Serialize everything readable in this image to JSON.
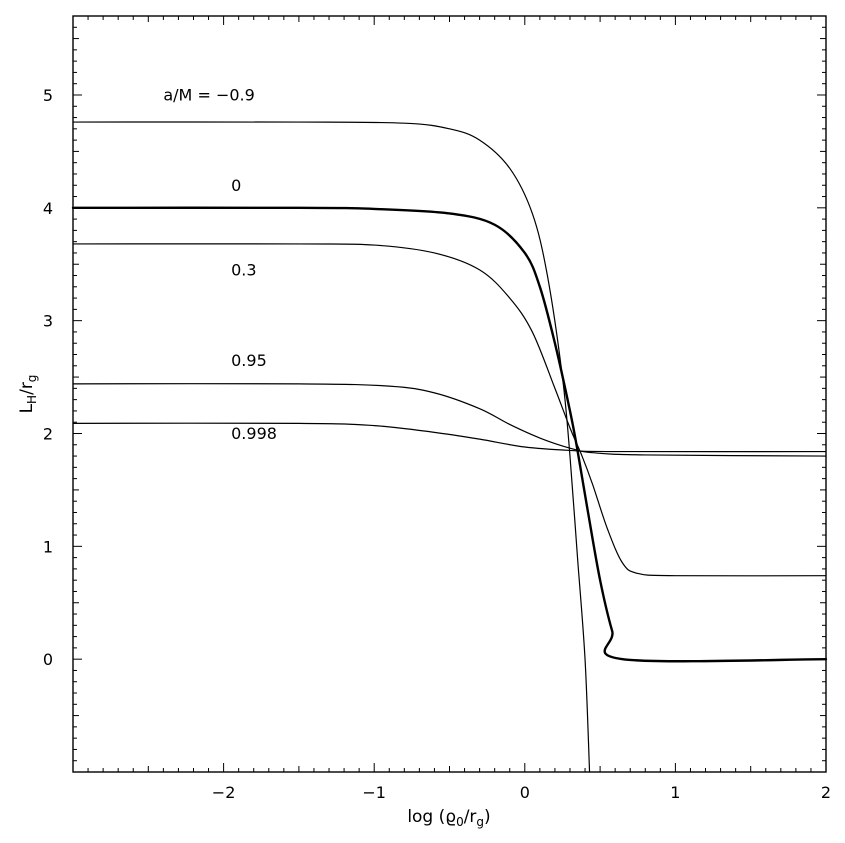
{
  "chart_data": {
    "type": "line",
    "title": "",
    "xlabel": "log (ϱ",
    "xlabel_sub": "0",
    "xlabel_mid": "/r",
    "xlabel_sub2": "g",
    "xlabel_end": ")",
    "ylabel_main": "L",
    "ylabel_sub": "H",
    "ylabel_mid": "/r",
    "ylabel_sub2": "g",
    "xlim": [
      -3,
      2
    ],
    "ylim": [
      -1,
      5.7
    ],
    "x_ticks": [
      {
        "value": -2,
        "label": "−2"
      },
      {
        "value": -1,
        "label": "−1"
      },
      {
        "value": 0,
        "label": "0"
      },
      {
        "value": 1,
        "label": "1"
      },
      {
        "value": 2,
        "label": "2"
      }
    ],
    "y_ticks": [
      {
        "value": 0,
        "label": "0"
      },
      {
        "value": 1,
        "label": "1"
      },
      {
        "value": 2,
        "label": "2"
      },
      {
        "value": 3,
        "label": "3"
      },
      {
        "value": 4,
        "label": "4"
      },
      {
        "value": 5,
        "label": "5"
      }
    ],
    "grid": false,
    "legend": "none",
    "series": [
      {
        "name": "a/M = −0.9",
        "label_x": -2.4,
        "label_y": 4.95,
        "bold": false,
        "points": [
          [
            -3,
            4.76
          ],
          [
            -1.5,
            4.76
          ],
          [
            -0.8,
            4.75
          ],
          [
            -0.5,
            4.7
          ],
          [
            -0.3,
            4.6
          ],
          [
            -0.1,
            4.35
          ],
          [
            0.05,
            3.95
          ],
          [
            0.15,
            3.4
          ],
          [
            0.25,
            2.5
          ],
          [
            0.3,
            1.8
          ],
          [
            0.35,
            0.9
          ],
          [
            0.4,
            0.0
          ],
          [
            0.43,
            -1.0
          ]
        ]
      },
      {
        "name": "0",
        "label_x": -1.95,
        "label_y": 4.15,
        "bold": true,
        "points": [
          [
            -3,
            4.0
          ],
          [
            -1.5,
            4.0
          ],
          [
            -1.0,
            3.99
          ],
          [
            -0.5,
            3.95
          ],
          [
            -0.2,
            3.85
          ],
          [
            0.0,
            3.6
          ],
          [
            0.1,
            3.3
          ],
          [
            0.2,
            2.8
          ],
          [
            0.3,
            2.2
          ],
          [
            0.35,
            1.85
          ],
          [
            0.42,
            1.3
          ],
          [
            0.5,
            0.7
          ],
          [
            0.58,
            0.25
          ],
          [
            0.65,
            0.0
          ],
          [
            2,
            0.0
          ]
        ]
      },
      {
        "name": "0.3",
        "label_x": -1.95,
        "label_y": 3.4,
        "bold": false,
        "points": [
          [
            -3,
            3.68
          ],
          [
            -1.5,
            3.68
          ],
          [
            -1.0,
            3.67
          ],
          [
            -0.6,
            3.6
          ],
          [
            -0.3,
            3.45
          ],
          [
            -0.1,
            3.2
          ],
          [
            0.05,
            2.9
          ],
          [
            0.2,
            2.4
          ],
          [
            0.3,
            2.05
          ],
          [
            0.38,
            1.8
          ],
          [
            0.45,
            1.55
          ],
          [
            0.55,
            1.15
          ],
          [
            0.65,
            0.85
          ],
          [
            0.75,
            0.76
          ],
          [
            1.0,
            0.74
          ],
          [
            2,
            0.74
          ]
        ]
      },
      {
        "name": "0.95",
        "label_x": -1.95,
        "label_y": 2.6,
        "bold": false,
        "points": [
          [
            -3,
            2.44
          ],
          [
            -1.5,
            2.44
          ],
          [
            -0.9,
            2.42
          ],
          [
            -0.6,
            2.36
          ],
          [
            -0.3,
            2.22
          ],
          [
            -0.1,
            2.08
          ],
          [
            0.1,
            1.96
          ],
          [
            0.3,
            1.87
          ],
          [
            0.45,
            1.83
          ],
          [
            0.8,
            1.81
          ],
          [
            2,
            1.8
          ]
        ]
      },
      {
        "name": "0.998",
        "label_x": -1.95,
        "label_y": 1.95,
        "bold": false,
        "points": [
          [
            -3,
            2.09
          ],
          [
            -1.5,
            2.09
          ],
          [
            -1.0,
            2.07
          ],
          [
            -0.6,
            2.01
          ],
          [
            -0.3,
            1.95
          ],
          [
            0.0,
            1.88
          ],
          [
            0.3,
            1.85
          ],
          [
            0.6,
            1.84
          ],
          [
            2,
            1.84
          ]
        ]
      }
    ]
  }
}
